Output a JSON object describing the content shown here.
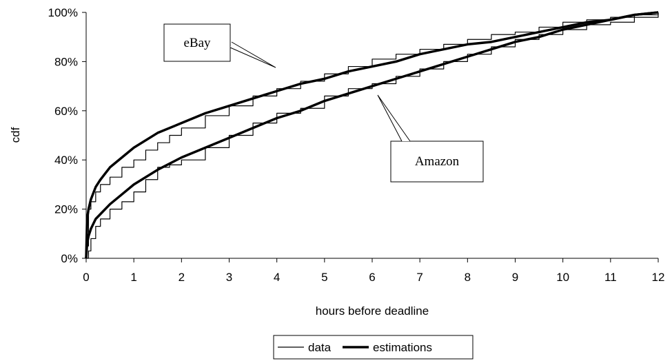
{
  "chart_data": {
    "type": "line",
    "title": "",
    "xlabel": "hours before deadline",
    "ylabel": "cdf",
    "xlim": [
      0,
      12
    ],
    "ylim": [
      0,
      100
    ],
    "x_ticks": [
      "0",
      "1",
      "2",
      "3",
      "4",
      "5",
      "6",
      "7",
      "8",
      "9",
      "10",
      "11",
      "12"
    ],
    "y_ticks": [
      "0%",
      "20%",
      "40%",
      "60%",
      "80%",
      "100%"
    ],
    "grid": false,
    "legend": {
      "position": "bottom",
      "entries": [
        "data",
        "estimations"
      ]
    },
    "annotations": [
      "eBay",
      "Amazon"
    ],
    "series": [
      {
        "name": "data",
        "group": "eBay",
        "style": "thin",
        "x": [
          0,
          0.05,
          0.1,
          0.2,
          0.3,
          0.5,
          0.75,
          1,
          1.25,
          1.5,
          1.75,
          2,
          2.5,
          3,
          3.5,
          4,
          4.5,
          5,
          5.5,
          6,
          6.5,
          7,
          7.5,
          8,
          8.5,
          9,
          9.5,
          10,
          10.5,
          11,
          11.5,
          12
        ],
        "y": [
          5,
          20,
          23,
          27,
          30,
          33,
          37,
          40,
          44,
          47,
          50,
          53,
          58,
          62,
          66,
          69,
          72,
          75,
          78,
          81,
          83,
          85,
          87,
          89,
          91,
          92,
          94,
          96,
          97,
          98,
          99,
          100
        ]
      },
      {
        "name": "estimations",
        "group": "eBay",
        "style": "thick",
        "x": [
          0,
          0.02,
          0.05,
          0.1,
          0.2,
          0.3,
          0.5,
          0.75,
          1,
          1.5,
          2,
          2.5,
          3,
          3.5,
          4,
          4.5,
          5,
          5.5,
          6,
          6.5,
          7,
          7.5,
          8,
          8.5,
          9,
          9.5,
          10,
          10.5,
          11,
          11.5,
          12
        ],
        "y": [
          0,
          16,
          20,
          24,
          29,
          32,
          37,
          41,
          45,
          51,
          55,
          59,
          62,
          65,
          68,
          71,
          73,
          76,
          78,
          80,
          83,
          85,
          87,
          88,
          90,
          92,
          94,
          96,
          97,
          99,
          100
        ]
      },
      {
        "name": "data",
        "group": "Amazon",
        "style": "thin",
        "x": [
          0,
          0.05,
          0.1,
          0.2,
          0.3,
          0.5,
          0.75,
          1,
          1.25,
          1.5,
          1.75,
          2,
          2.5,
          3,
          3.5,
          4,
          4.5,
          5,
          5.5,
          6,
          6.5,
          7,
          7.5,
          8,
          8.5,
          9,
          9.5,
          10,
          10.5,
          11,
          11.5,
          12
        ],
        "y": [
          0,
          3,
          8,
          13,
          16,
          20,
          23,
          27,
          32,
          37,
          38,
          40,
          45,
          50,
          55,
          59,
          61,
          66,
          69,
          71,
          74,
          77,
          80,
          83,
          86,
          89,
          91,
          93,
          95,
          96,
          98,
          100
        ]
      },
      {
        "name": "estimations",
        "group": "Amazon",
        "style": "thick",
        "x": [
          0,
          0.02,
          0.05,
          0.1,
          0.2,
          0.3,
          0.5,
          0.75,
          1,
          1.5,
          2,
          2.5,
          3,
          3.5,
          4,
          4.5,
          5,
          5.5,
          6,
          6.5,
          7,
          7.5,
          8,
          8.5,
          9,
          9.5,
          10,
          10.5,
          11,
          11.5,
          12
        ],
        "y": [
          0,
          6,
          9,
          12,
          16,
          18,
          22,
          26,
          30,
          36,
          41,
          45,
          49,
          53,
          57,
          60,
          64,
          67,
          70,
          73,
          76,
          79,
          82,
          85,
          88,
          90,
          93,
          95,
          97,
          99,
          100
        ]
      }
    ]
  }
}
